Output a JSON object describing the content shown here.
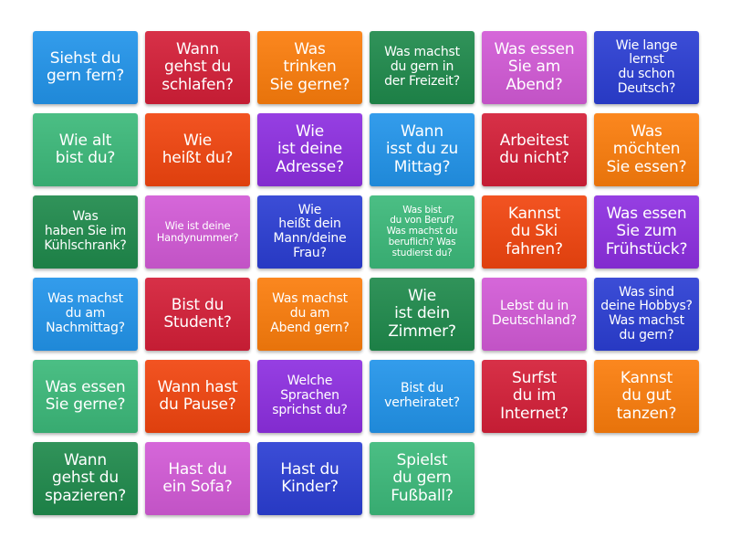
{
  "palette": [
    "#2294ea",
    "#d41f38",
    "#fb7d0c",
    "#1f8a4c",
    "#d25ad6",
    "#2b3ed3",
    "#3cb97a",
    "#f1450f",
    "#8d2fe0"
  ],
  "cards": [
    "Siehst du\ngern fern?",
    "Wann\ngehst du\nschlafen?",
    "Was\ntrinken\nSie gerne?",
    "Was machst\ndu gern in\nder Freizeit?",
    "Was essen\nSie am\nAbend?",
    "Wie lange\nlernst\ndu schon\nDeutsch?",
    "Wie alt\nbist du?",
    "Wie\nheißt du?",
    "Wie\nist deine\nAdresse?",
    "Wann\nisst du zu\nMittag?",
    "Arbeitest\ndu nicht?",
    "Was\nmöchten\nSie essen?",
    "Was\nhaben Sie im\nKühlschrank?",
    "Wie ist deine\nHandynummer?",
    "Wie\nheißt dein\nMann/deine\nFrau?",
    "Was bist\ndu von Beruf?\nWas machst du\nberuflich? Was\nstudierst du?",
    "Kannst\ndu Ski\nfahren?",
    "Was essen\nSie zum\nFrühstück?",
    "Was machst\ndu am\nNachmittag?",
    "Bist du\nStudent?",
    "Was machst\ndu am\nAbend gern?",
    "Wie\nist dein\nZimmer?",
    "Lebst du in\nDeutschland?",
    "Was sind\ndeine Hobbys?\nWas machst\ndu gern?",
    "Was essen\nSie gerne?",
    "Wann hast\ndu Pause?",
    "Welche\nSprachen\nsprichst du?",
    "Bist du\nverheiratet?",
    "Surfst\ndu im\nInternet?",
    "Kannst\ndu gut\ntanzen?",
    "Wann\ngehst du\nspazieren?",
    "Hast du\nein Sofa?",
    "Hast du\nKinder?",
    "Spielst\ndu gern\nFußball?"
  ]
}
